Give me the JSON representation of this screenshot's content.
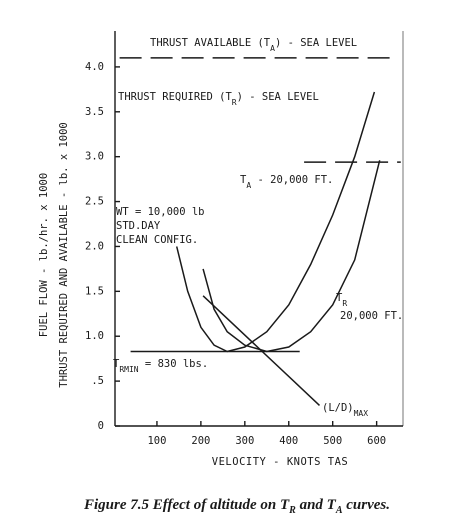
{
  "chart_data": {
    "type": "line",
    "xlabel": "VELOCITY - KNOTS TAS",
    "ylabel": [
      "FUEL FLOW - lb./hr. x 1000",
      "THRUST REQUIRED AND AVAILABLE - lb. x 1000"
    ],
    "xlim": [
      0,
      660
    ],
    "ylim": [
      0,
      4.4
    ],
    "xticks": [
      100,
      200,
      300,
      400,
      500,
      600
    ],
    "yticks": [
      0,
      {
        "value": 0.5,
        "label": ".5"
      },
      {
        "value": 1,
        "label": "1.0"
      },
      1.5,
      {
        "value": 2,
        "label": "2.0"
      },
      2.5,
      {
        "value": 3,
        "label": "3.0"
      },
      3.5,
      {
        "value": 4,
        "label": "4.0"
      }
    ],
    "series": [
      {
        "color": "#1a1a1a",
        "style": "dashed",
        "x": [
          15,
          650
        ],
        "values": [
          4.1,
          4.1
        ]
      },
      {
        "color": "#1a1a1a",
        "style": "solid",
        "x": [
          145,
          170,
          200,
          230,
          260,
          300,
          350,
          400,
          450,
          500,
          550,
          595
        ],
        "values": [
          2.0,
          1.5,
          1.1,
          0.9,
          0.83,
          0.88,
          1.05,
          1.35,
          1.8,
          2.35,
          3.0,
          3.72
        ]
      },
      {
        "color": "#1a1a1a",
        "style": "dashed",
        "x": [
          435,
          655
        ],
        "values": [
          2.94,
          2.94
        ]
      },
      {
        "color": "#1a1a1a",
        "style": "solid",
        "x": [
          205,
          230,
          260,
          300,
          350,
          400,
          450,
          500,
          550,
          607
        ],
        "values": [
          1.75,
          1.3,
          1.05,
          0.9,
          0.83,
          0.88,
          1.05,
          1.35,
          1.85,
          2.96
        ]
      },
      {
        "color": "#1a1a1a",
        "style": "solid",
        "x": [
          40,
          425
        ],
        "values": [
          0.83,
          0.83
        ]
      },
      {
        "color": "#1a1a1a",
        "style": "solid",
        "x": [
          205,
          470
        ],
        "values": [
          1.45,
          0.23
        ]
      }
    ],
    "annotations": [
      [
        "THRUST AVAILABLE (T",
        "A",
        ") - SEA LEVEL"
      ],
      [
        "THRUST REQUIRED (T",
        "R",
        ") - SEA LEVEL"
      ],
      [
        "T",
        "A",
        " - 20,000 FT."
      ],
      [
        "WT = 10,000 lb"
      ],
      [
        "STD.DAY"
      ],
      [
        "CLEAN CONFIG."
      ],
      [
        "T",
        "R"
      ],
      [
        "20,000 FT."
      ],
      [
        "T",
        "R",
        "MIN",
        " = 830 lbs."
      ],
      [
        "(L/D)",
        "MAX"
      ]
    ],
    "caption": [
      "Figure 7.5 Effect of altitude on T",
      "R",
      " and T",
      "A",
      " curves."
    ]
  }
}
